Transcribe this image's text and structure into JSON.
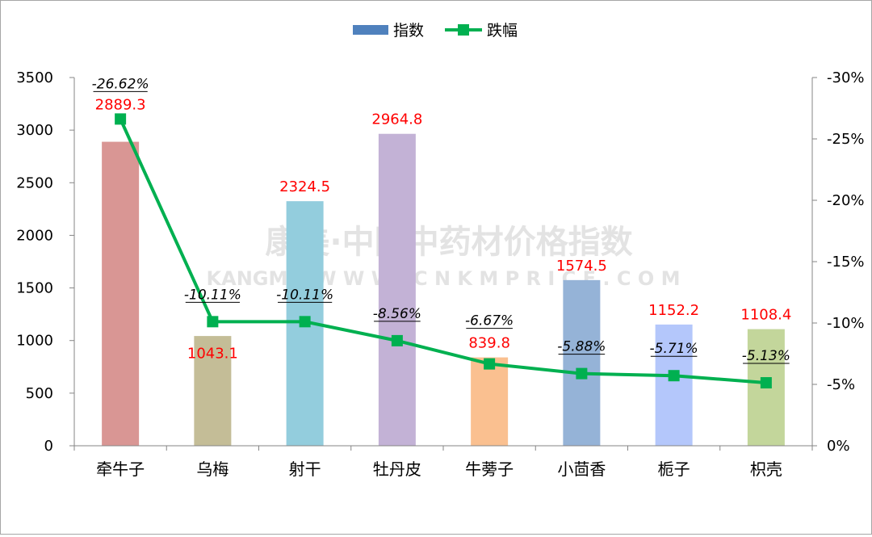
{
  "legend": {
    "bar_label": "指数",
    "line_label": "跌幅"
  },
  "watermark": {
    "main": "康美·中国中药材价格指数",
    "sub": "KANGMEI  W W W . C N K M P R I C E . C O M"
  },
  "colors": {
    "line": "#00b050",
    "legend_bar": "#4f81bd",
    "value_label": "#ff0000",
    "bars": [
      "#d99694",
      "#c4bd97",
      "#93cddd",
      "#c3b2d6",
      "#fac090",
      "#95b3d7",
      "#b4c7fb",
      "#c3d69b"
    ]
  },
  "chart_data": {
    "type": "bar",
    "title": "",
    "categories": [
      "牵牛子",
      "乌梅",
      "射干",
      "牡丹皮",
      "牛蒡子",
      "小茴香",
      "栀子",
      "枳壳"
    ],
    "series": [
      {
        "name": "指数",
        "type": "bar",
        "axis": "left",
        "values": [
          2889.3,
          1043.1,
          2324.5,
          2964.8,
          839.8,
          1574.5,
          1152.2,
          1108.4
        ]
      },
      {
        "name": "跌幅",
        "type": "line",
        "axis": "right",
        "values": [
          -26.62,
          -10.11,
          -10.11,
          -8.56,
          -6.67,
          -5.88,
          -5.71,
          -5.13
        ]
      }
    ],
    "value_labels": [
      "2889.3",
      "1043.1",
      "2324.5",
      "2964.8",
      "839.8",
      "1574.5",
      "1152.2",
      "1108.4"
    ],
    "pct_labels": [
      "-26.62%",
      "-10.11%",
      "-10.11%",
      "-8.56%",
      "-6.67%",
      "-5.88%",
      "-5.71%",
      "-5.13%"
    ],
    "y_left": {
      "range": [
        0,
        3500
      ],
      "ticks": [
        "0",
        "500",
        "1000",
        "1500",
        "2000",
        "2500",
        "3000",
        "3500"
      ]
    },
    "y_right": {
      "range": [
        0,
        -30
      ],
      "reversed": true,
      "ticks": [
        "0%",
        "-5%",
        "-10%",
        "-15%",
        "-20%",
        "-25%",
        "-30%"
      ]
    },
    "grid": false,
    "legend_position": "top"
  }
}
